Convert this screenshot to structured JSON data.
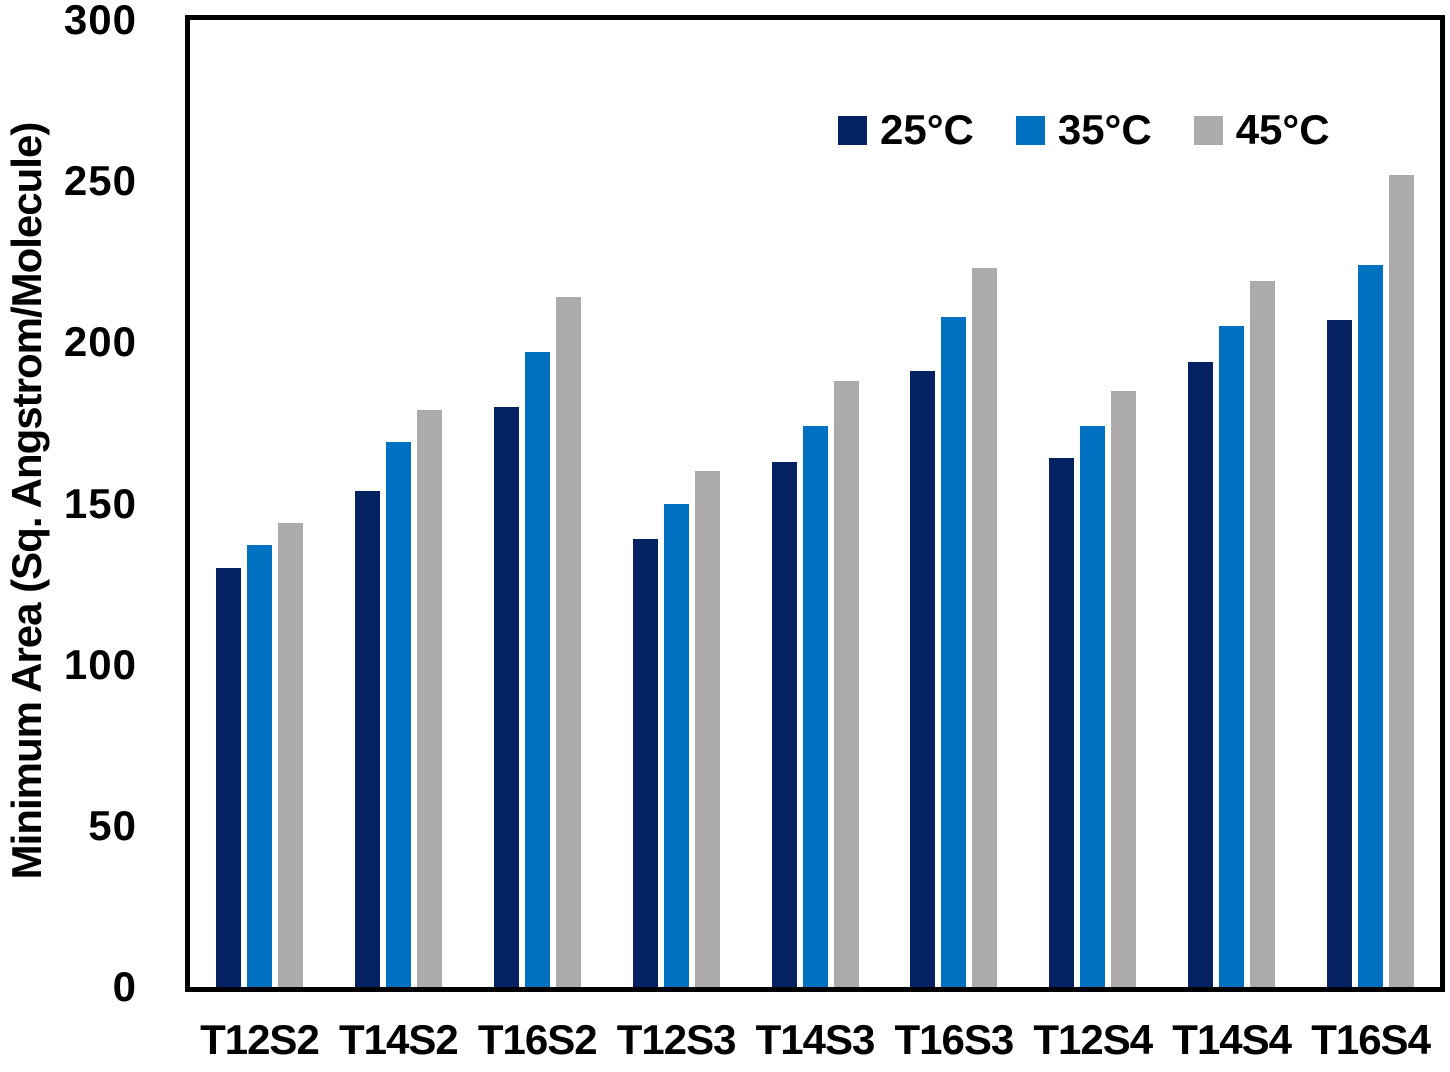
{
  "chart_data": {
    "type": "bar",
    "title": "",
    "xlabel": "",
    "ylabel": "Minimum Area (Sq. Angstrom/Molecule)",
    "ylim": [
      0,
      300
    ],
    "yticks": [
      0,
      50,
      100,
      150,
      200,
      250,
      300
    ],
    "grid": false,
    "legend_position": "top-right-inside",
    "axis_color": "#000000",
    "background": "#FFFFFF",
    "categories": [
      "T12S2",
      "T14S2",
      "T16S2",
      "T12S3",
      "T14S3",
      "T16S3",
      "T12S4",
      "T14S4",
      "T16S4"
    ],
    "series": [
      {
        "name": "25°C",
        "color": "#042161",
        "values": [
          130,
          154,
          180,
          139,
          163,
          191,
          164,
          194,
          207
        ]
      },
      {
        "name": "35°C",
        "color": "#0070C0",
        "values": [
          137,
          169,
          197,
          150,
          174,
          208,
          174,
          205,
          224
        ]
      },
      {
        "name": "45°C",
        "color": "#ADAAAA",
        "values": [
          144,
          179,
          214,
          160,
          188,
          223,
          185,
          219,
          252
        ]
      }
    ]
  }
}
